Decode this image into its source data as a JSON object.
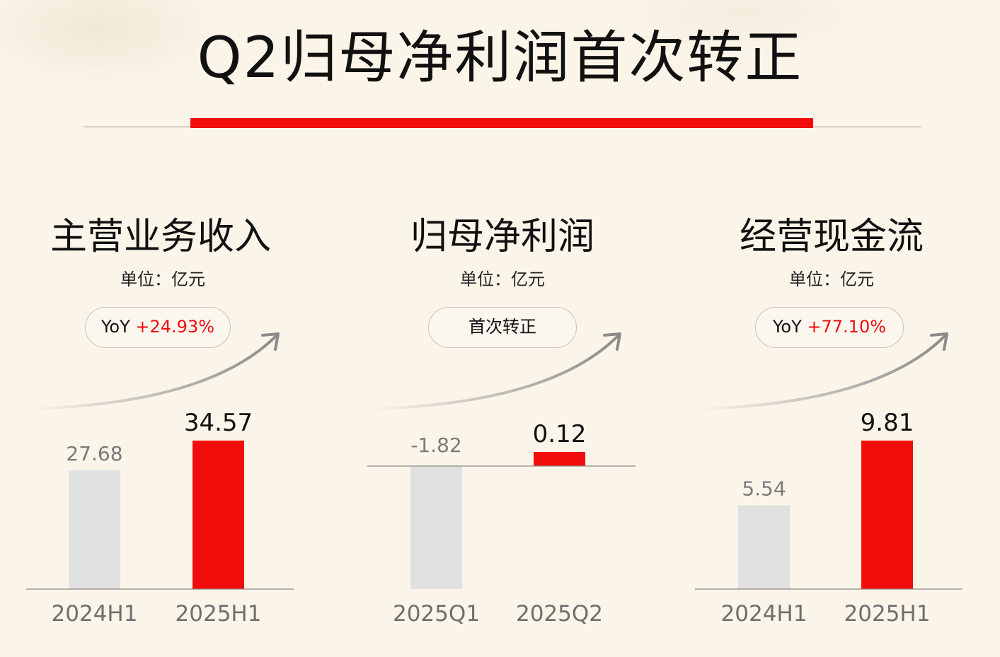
{
  "title": "Q2归母净利润首次转正",
  "colors": {
    "accent": "#f20d0d",
    "muted_bar": "#e1e1e1",
    "baseline": "#8a8a8a",
    "text": "#111111",
    "muted_text": "#7a7a7a"
  },
  "panels": [
    {
      "title": "主营业务收入",
      "unit": "单位：亿元",
      "badge": {
        "prefix": "YoY ",
        "value": "+24.93%"
      }
    },
    {
      "title": "归母净利润",
      "unit": "单位：亿元",
      "badge": {
        "prefix": "首次转正",
        "value": ""
      }
    },
    {
      "title": "经营现金流",
      "unit": "单位：亿元",
      "badge": {
        "prefix": "YoY ",
        "value": "+77.10%"
      }
    }
  ],
  "chart_data": [
    {
      "type": "bar",
      "title": "主营业务收入",
      "ylabel": "单位：亿元",
      "categories": [
        "2024H1",
        "2025H1"
      ],
      "values": [
        27.68,
        34.57
      ],
      "value_labels": [
        "27.68",
        "34.57"
      ],
      "ylim": [
        0,
        34.57
      ],
      "bar_colors": [
        "#e1e1e1",
        "#f20d0d"
      ],
      "grid": false
    },
    {
      "type": "bar",
      "title": "归母净利润",
      "ylabel": "单位：亿元",
      "categories": [
        "2025Q1",
        "2025Q2"
      ],
      "values": [
        -1.82,
        0.12
      ],
      "value_labels": [
        "-1.82",
        "0.12"
      ],
      "ylim": [
        -1.82,
        0.12
      ],
      "bar_colors": [
        "#e1e1e1",
        "#f20d0d"
      ],
      "grid": false
    },
    {
      "type": "bar",
      "title": "经营现金流",
      "ylabel": "单位：亿元",
      "categories": [
        "2024H1",
        "2025H1"
      ],
      "values": [
        5.54,
        9.81
      ],
      "value_labels": [
        "5.54",
        "9.81"
      ],
      "ylim": [
        0,
        9.81
      ],
      "bar_colors": [
        "#e1e1e1",
        "#f20d0d"
      ],
      "grid": false
    }
  ]
}
